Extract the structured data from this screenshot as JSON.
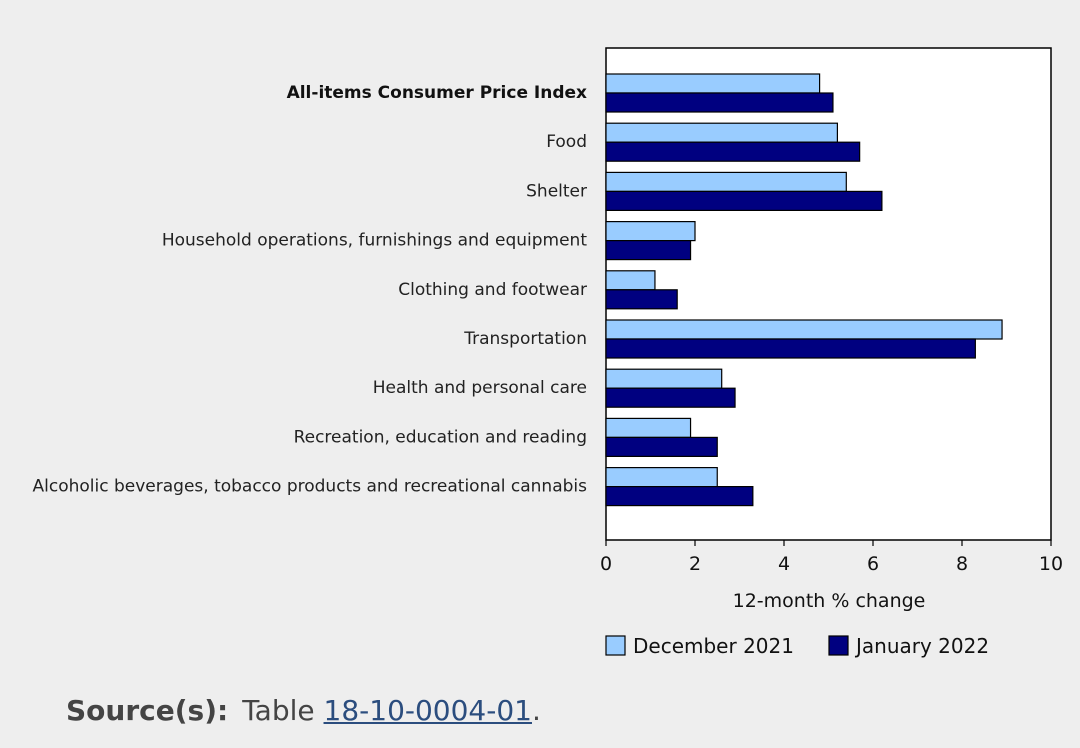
{
  "chart_data": {
    "type": "bar",
    "orientation": "horizontal",
    "categories": [
      "All-items Consumer Price Index",
      "Food",
      "Shelter",
      "Household operations, furnishings and equipment",
      "Clothing and footwear",
      "Transportation",
      "Health and personal care",
      "Recreation, education and reading",
      "Alcoholic beverages, tobacco products and recreational cannabis"
    ],
    "series": [
      {
        "name": "December 2021",
        "color": "#99ccff",
        "values": [
          4.8,
          5.2,
          5.4,
          2.0,
          1.1,
          8.9,
          2.6,
          1.9,
          2.5
        ]
      },
      {
        "name": "January 2022",
        "color": "#000080",
        "values": [
          5.1,
          5.7,
          6.2,
          1.9,
          1.6,
          8.3,
          2.9,
          2.5,
          3.3
        ]
      }
    ],
    "xlabel": "12-month % change",
    "xlim": [
      0,
      10
    ],
    "xticks": [
      "0",
      "2",
      "4",
      "6",
      "8",
      "10"
    ],
    "grid": false,
    "legend_position": "bottom"
  },
  "source": {
    "label": "Source(s):",
    "prefix": "Table",
    "link_text": "18-10-0004-01",
    "suffix": "."
  }
}
